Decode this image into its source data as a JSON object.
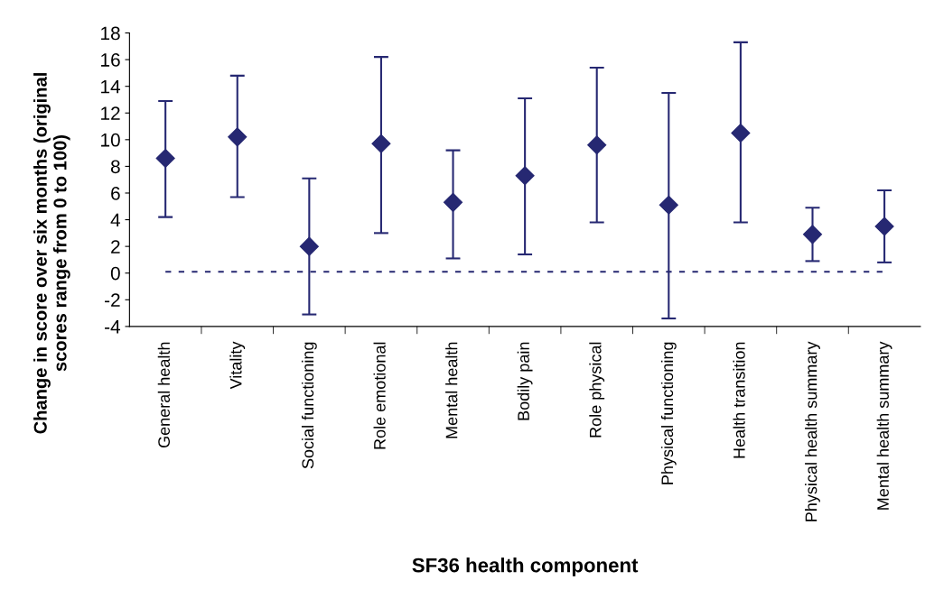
{
  "chart_data": {
    "type": "scatter",
    "xlabel": "SF36 health component",
    "ylabel": "Change in score over six months (original\nscores range from 0 to 100)",
    "categories": [
      "General health",
      "Vitality",
      "Social functioning",
      "Role emotional",
      "Mental health",
      "Bodily pain",
      "Role physical",
      "Physical functioning",
      "Health transition",
      "Physical health summary",
      "Mental health summary"
    ],
    "series": [
      {
        "color": "#262872",
        "values": [
          8.6,
          10.2,
          2.0,
          9.7,
          5.3,
          7.3,
          9.6,
          5.1,
          10.5,
          2.9,
          3.5
        ],
        "errors": [
          [
            4.2,
            12.9
          ],
          [
            5.7,
            14.8
          ],
          [
            -3.1,
            7.1
          ],
          [
            3.0,
            16.2
          ],
          [
            1.1,
            9.2
          ],
          [
            1.4,
            13.1
          ],
          [
            3.8,
            15.4
          ],
          [
            -3.4,
            13.5
          ],
          [
            3.8,
            17.3
          ],
          [
            0.9,
            4.9
          ],
          [
            0.8,
            6.2
          ]
        ]
      }
    ],
    "ylim": [
      -4,
      18
    ],
    "yticks": [
      -4,
      -2,
      0,
      2,
      4,
      6,
      8,
      10,
      12,
      14,
      16,
      18
    ],
    "ref_lines": [
      {
        "axis": "y",
        "value": 0.1,
        "color": "#262872",
        "line_style": "dotted"
      }
    ],
    "marker": "diamond",
    "grid": false,
    "legend": false
  }
}
